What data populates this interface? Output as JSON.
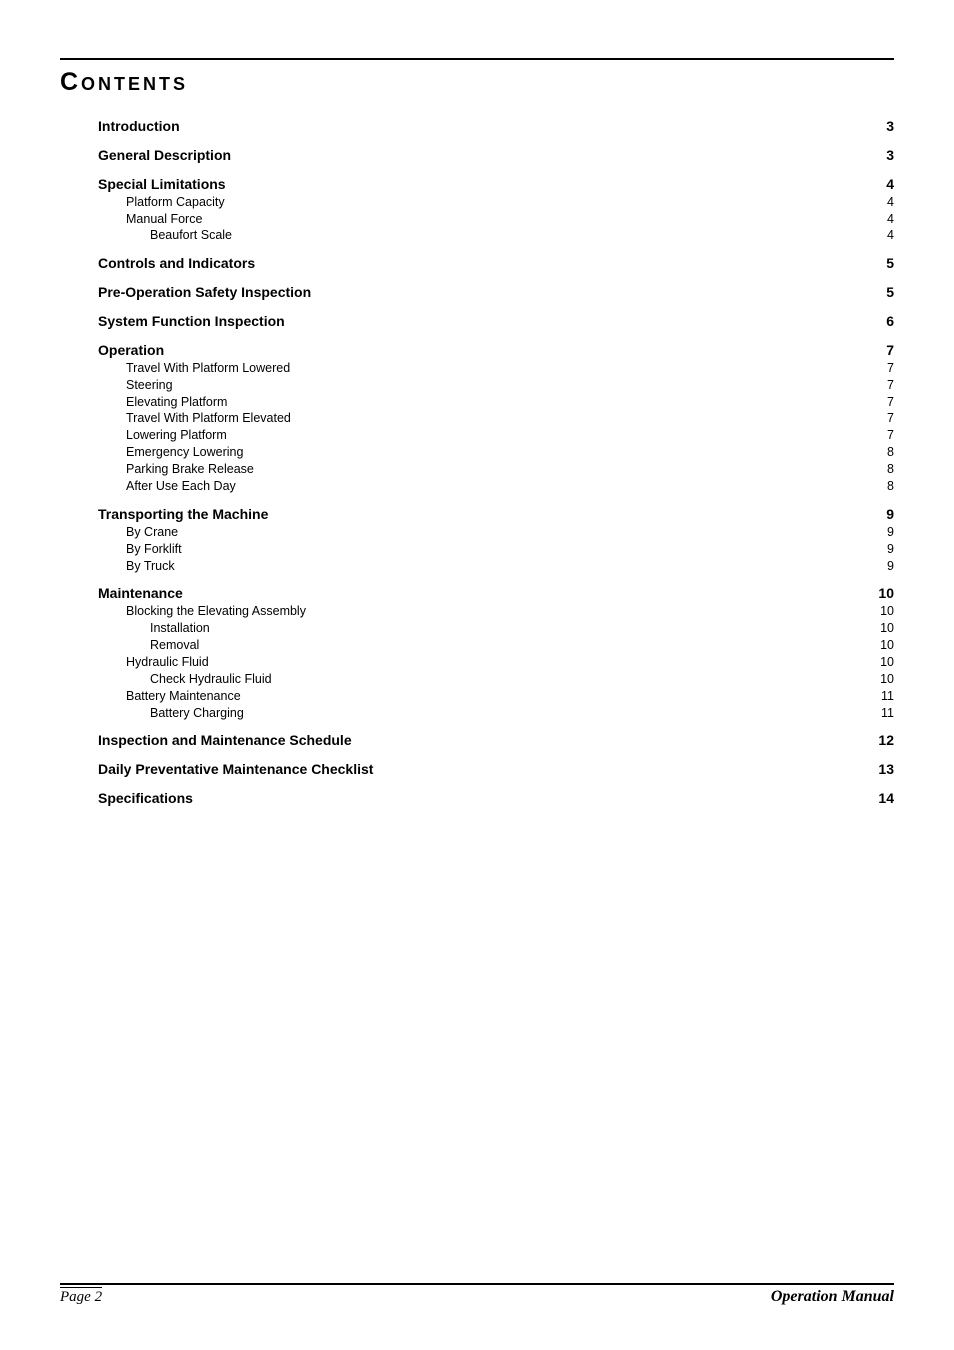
{
  "title": "Contents",
  "footer": {
    "page": "Page 2",
    "right": "Operation Manual"
  },
  "colors": {
    "text": "#000000",
    "rule": "#000000",
    "bg": "#ffffff"
  },
  "fonts": {
    "title_fontsize": 25,
    "title_letter_spacing": 3,
    "title_weight": 900,
    "section_fontsize": 14,
    "section_weight": 700,
    "sub_fontsize": 12.5,
    "sub_weight": 400,
    "footer_family": "Times New Roman"
  },
  "toc": [
    {
      "level": "section",
      "label": "Introduction",
      "page": 3
    },
    {
      "level": "section",
      "label": "General Description",
      "page": 3
    },
    {
      "level": "section",
      "label": "Special Limitations",
      "page": 4
    },
    {
      "level": "sub1",
      "label": "Platform Capacity",
      "page": 4
    },
    {
      "level": "sub1",
      "label": "Manual Force",
      "page": 4
    },
    {
      "level": "sub2",
      "label": "Beaufort Scale",
      "page": 4
    },
    {
      "level": "section",
      "label": "Controls and Indicators",
      "page": 5
    },
    {
      "level": "section",
      "label": "Pre-Operation Safety Inspection",
      "page": 5
    },
    {
      "level": "section",
      "label": "System Function Inspection",
      "page": 6
    },
    {
      "level": "section",
      "label": "Operation",
      "page": 7
    },
    {
      "level": "sub1",
      "label": "Travel With Platform Lowered",
      "page": 7
    },
    {
      "level": "sub1",
      "label": "Steering",
      "page": 7
    },
    {
      "level": "sub1",
      "label": "Elevating Platform",
      "page": 7
    },
    {
      "level": "sub1",
      "label": "Travel With Platform Elevated",
      "page": 7
    },
    {
      "level": "sub1",
      "label": "Lowering Platform",
      "page": 7
    },
    {
      "level": "sub1",
      "label": "Emergency Lowering",
      "page": 8
    },
    {
      "level": "sub1",
      "label": "Parking Brake Release",
      "page": 8
    },
    {
      "level": "sub1",
      "label": "After Use Each Day",
      "page": 8
    },
    {
      "level": "section",
      "label": "Transporting the Machine",
      "page": 9
    },
    {
      "level": "sub1",
      "label": "By Crane",
      "page": 9
    },
    {
      "level": "sub1",
      "label": "By Forklift",
      "page": 9
    },
    {
      "level": "sub1",
      "label": "By Truck",
      "page": 9
    },
    {
      "level": "section",
      "label": "Maintenance",
      "page": 10
    },
    {
      "level": "sub1",
      "label": "Blocking the Elevating Assembly",
      "page": 10
    },
    {
      "level": "sub2",
      "label": "Installation",
      "page": 10
    },
    {
      "level": "sub2",
      "label": "Removal",
      "page": 10
    },
    {
      "level": "sub1",
      "label": "Hydraulic Fluid",
      "page": 10
    },
    {
      "level": "sub2",
      "label": "Check Hydraulic Fluid",
      "page": 10
    },
    {
      "level": "sub1",
      "label": "Battery Maintenance",
      "page": 11
    },
    {
      "level": "sub2",
      "label": "Battery Charging",
      "page": 11
    },
    {
      "level": "section",
      "label": "Inspection and Maintenance Schedule",
      "page": 12
    },
    {
      "level": "section",
      "label": "Daily Preventative Maintenance Checklist",
      "page": 13
    },
    {
      "level": "section",
      "label": "Specifications",
      "page": 14
    }
  ]
}
